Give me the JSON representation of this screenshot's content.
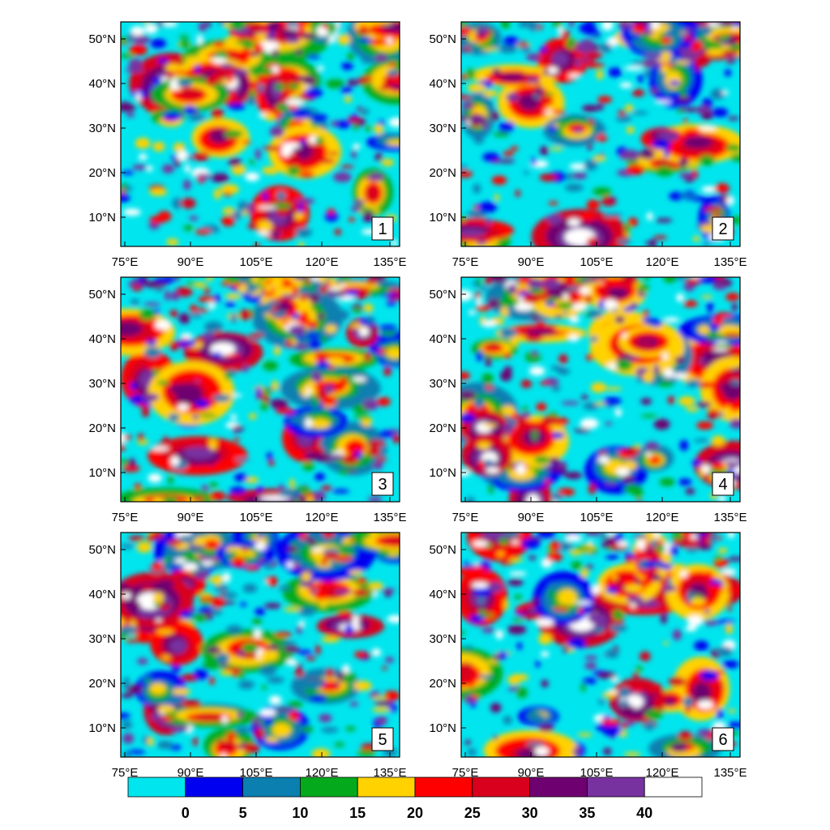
{
  "colors": [
    "#00e5ee",
    "#0000f0",
    "#0a7fb0",
    "#04aa1c",
    "#ffd200",
    "#fe0000",
    "#d8001c",
    "#6e0070",
    "#7832a0",
    "#ffffff"
  ],
  "colorbar": {
    "labels": [
      "0",
      "5",
      "10",
      "15",
      "20",
      "25",
      "30",
      "35",
      "40"
    ]
  },
  "axes": {
    "lon_labels": [
      "75°E",
      "90°E",
      "105°E",
      "120°E",
      "135°E"
    ],
    "lat_labels": [
      "50°N",
      "40°N",
      "30°N",
      "20°N",
      "10°N"
    ]
  },
  "panels": [
    {
      "number": "1",
      "seed": 11
    },
    {
      "number": "2",
      "seed": 23
    },
    {
      "number": "3",
      "seed": 37
    },
    {
      "number": "4",
      "seed": 41
    },
    {
      "number": "5",
      "seed": 53
    },
    {
      "number": "6",
      "seed": 67
    }
  ]
}
